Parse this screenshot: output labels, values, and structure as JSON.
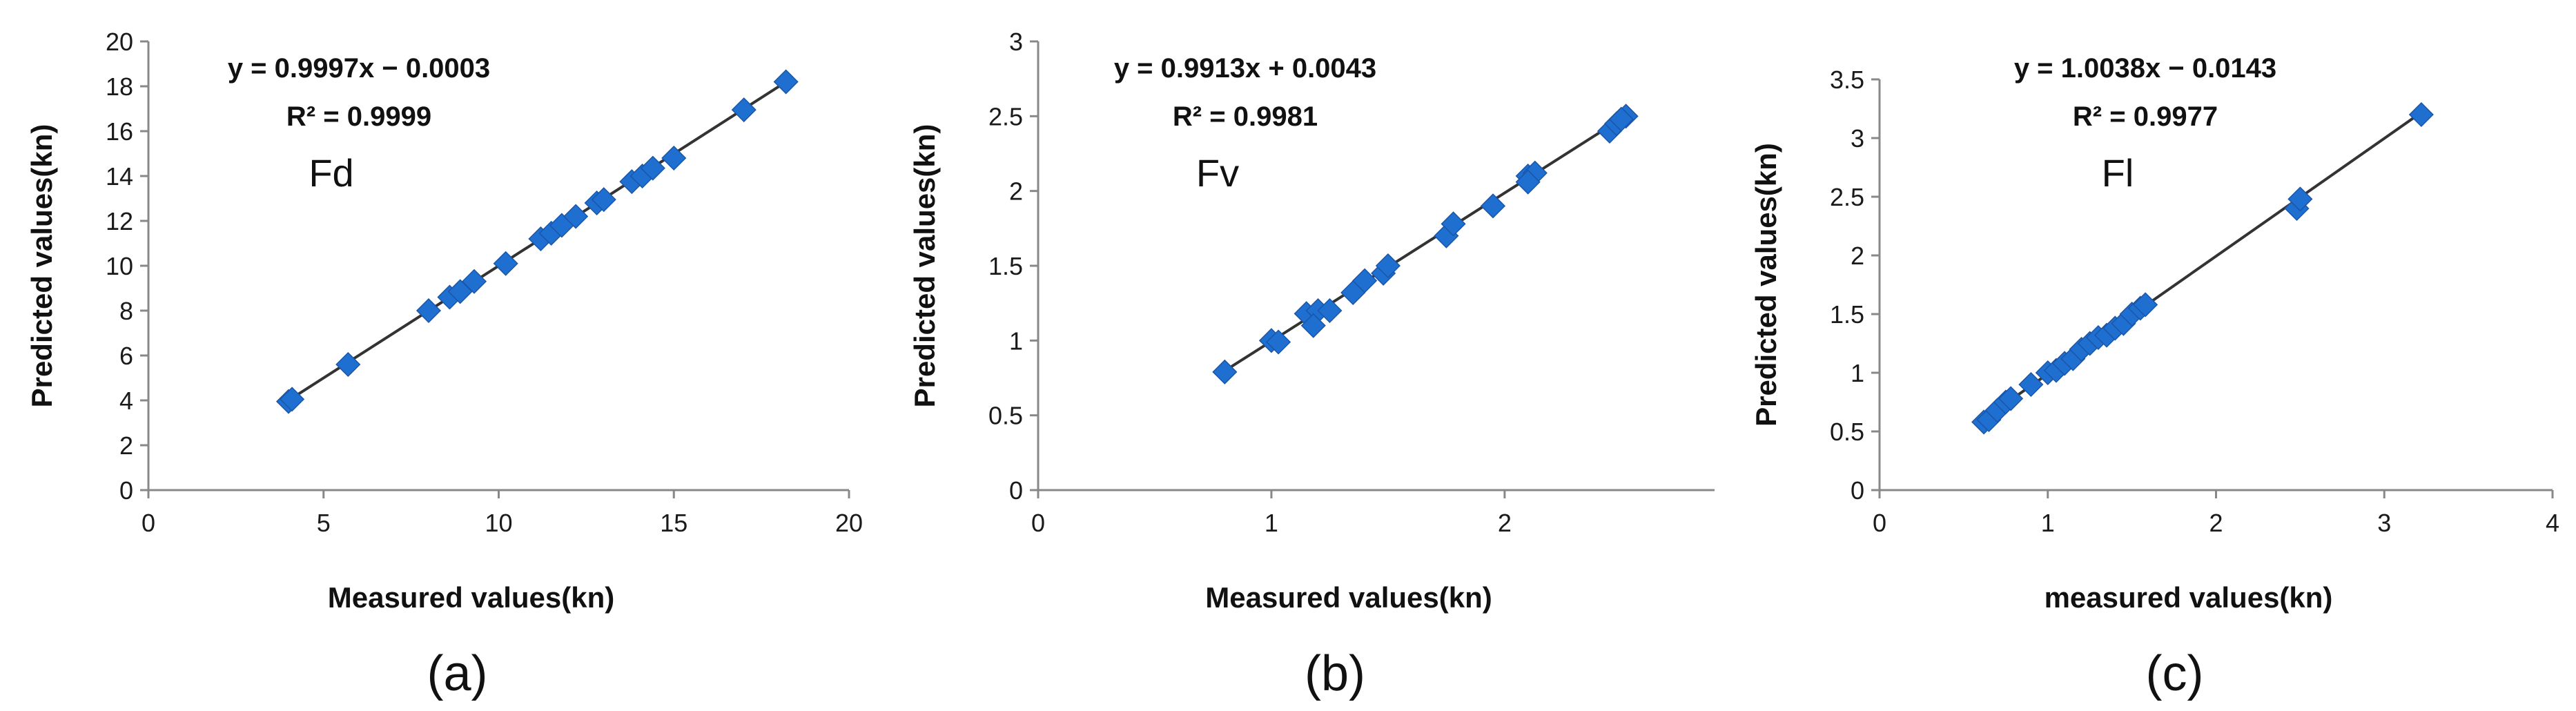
{
  "chart_data": [
    {
      "type": "scatter",
      "panel_label": "(a)",
      "series_label": "Fd",
      "equation": "y = 0.9997x − 0.0003",
      "r2": "R² = 0.9999",
      "xlabel": "Measured values(kn)",
      "ylabel": "Predicted values(kn)",
      "xlim": [
        0,
        20
      ],
      "ylim": [
        0,
        20
      ],
      "xticks": [
        0,
        5,
        10,
        15,
        20
      ],
      "yticks": [
        0,
        2,
        4,
        6,
        8,
        10,
        12,
        14,
        16,
        18,
        20
      ],
      "trendline": {
        "slope": 0.9997,
        "intercept": -0.0003
      },
      "grid": false,
      "color": "#1f6fd1",
      "points": [
        [
          4.0,
          3.95
        ],
        [
          4.1,
          4.05
        ],
        [
          5.7,
          5.6
        ],
        [
          8.0,
          8.0
        ],
        [
          8.6,
          8.6
        ],
        [
          8.9,
          8.85
        ],
        [
          9.3,
          9.3
        ],
        [
          10.2,
          10.1
        ],
        [
          11.2,
          11.2
        ],
        [
          11.5,
          11.45
        ],
        [
          11.8,
          11.8
        ],
        [
          12.2,
          12.2
        ],
        [
          12.8,
          12.8
        ],
        [
          13.0,
          12.95
        ],
        [
          13.8,
          13.75
        ],
        [
          14.1,
          14.0
        ],
        [
          14.4,
          14.35
        ],
        [
          15.0,
          14.8
        ],
        [
          17.0,
          16.95
        ],
        [
          18.2,
          18.2
        ]
      ]
    },
    {
      "type": "scatter",
      "panel_label": "(b)",
      "series_label": "Fv",
      "equation": "y = 0.9913x + 0.0043",
      "r2": "R² = 0.9981",
      "xlabel": "Measured values(kn)",
      "ylabel": "Predicted values(kn)",
      "xlim": [
        0,
        2.9
      ],
      "ylim": [
        0,
        3
      ],
      "xticks": [
        0,
        1,
        2
      ],
      "yticks": [
        0,
        0.5,
        1,
        1.5,
        2,
        2.5,
        3
      ],
      "trendline": {
        "slope": 0.9913,
        "intercept": 0.0043
      },
      "grid": false,
      "color": "#1f6fd1",
      "points": [
        [
          0.8,
          0.79
        ],
        [
          1.0,
          1.0
        ],
        [
          1.03,
          0.99
        ],
        [
          1.15,
          1.18
        ],
        [
          1.2,
          1.2
        ],
        [
          1.25,
          1.2
        ],
        [
          1.18,
          1.1
        ],
        [
          1.35,
          1.32
        ],
        [
          1.4,
          1.4
        ],
        [
          1.48,
          1.45
        ],
        [
          1.5,
          1.5
        ],
        [
          1.75,
          1.7
        ],
        [
          1.78,
          1.78
        ],
        [
          1.95,
          1.9
        ],
        [
          2.1,
          2.1
        ],
        [
          2.13,
          2.12
        ],
        [
          2.1,
          2.06
        ],
        [
          2.45,
          2.4
        ],
        [
          2.48,
          2.45
        ],
        [
          2.52,
          2.5
        ],
        [
          2.5,
          2.48
        ]
      ]
    },
    {
      "type": "scatter",
      "panel_label": "(c)",
      "series_label": "Fl",
      "equation": "y = 1.0038x − 0.0143",
      "r2": "R² = 0.9977",
      "xlabel": "measured values(kn)",
      "ylabel": "Predicted values(kn)",
      "xlim": [
        0,
        4
      ],
      "ylim": [
        0,
        3.5
      ],
      "xticks": [
        0,
        1,
        2,
        3,
        4
      ],
      "yticks": [
        0,
        0.5,
        1,
        1.5,
        2,
        2.5,
        3,
        3.5
      ],
      "trendline": {
        "slope": 1.0038,
        "intercept": -0.0143
      },
      "grid": false,
      "color": "#1f6fd1",
      "points": [
        [
          0.62,
          0.58
        ],
        [
          0.65,
          0.6
        ],
        [
          0.7,
          0.68
        ],
        [
          0.75,
          0.75
        ],
        [
          0.78,
          0.78
        ],
        [
          0.9,
          0.9
        ],
        [
          1.0,
          1.0
        ],
        [
          1.05,
          1.02
        ],
        [
          1.1,
          1.08
        ],
        [
          1.15,
          1.12
        ],
        [
          1.2,
          1.2
        ],
        [
          1.25,
          1.25
        ],
        [
          1.3,
          1.3
        ],
        [
          1.35,
          1.32
        ],
        [
          1.4,
          1.38
        ],
        [
          1.45,
          1.42
        ],
        [
          1.5,
          1.5
        ],
        [
          1.55,
          1.55
        ],
        [
          1.58,
          1.58
        ],
        [
          2.48,
          2.4
        ],
        [
          2.5,
          2.48
        ],
        [
          3.22,
          3.2
        ]
      ]
    }
  ]
}
